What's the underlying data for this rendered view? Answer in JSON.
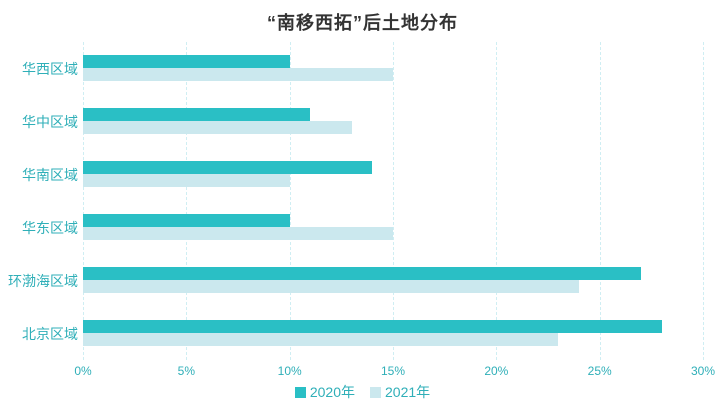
{
  "title": "“南移西拓”后土地分布",
  "colors": {
    "series_2020": "#2abfc5",
    "series_2021": "#cbe8ee",
    "axis_text": "#2fafb8",
    "category_text": "#2fafb8",
    "gridline": "#cfeef3",
    "title_text": "#333333",
    "background": "#ffffff"
  },
  "chart_data": {
    "type": "bar",
    "orientation": "horizontal",
    "title": "“南移西拓”后土地分布",
    "categories": [
      "华西区域",
      "华中区域",
      "华南区域",
      "华东区域",
      "环渤海区域",
      "北京区域"
    ],
    "series": [
      {
        "name": "2020年",
        "color": "#2abfc5",
        "values": [
          10,
          11,
          14,
          10,
          27,
          28
        ]
      },
      {
        "name": "2021年",
        "color": "#cbe8ee",
        "values": [
          15,
          13,
          10,
          15,
          24,
          23
        ]
      }
    ],
    "value_unit": "%",
    "xlabel": "",
    "ylabel": "",
    "xlim": [
      0,
      30
    ],
    "x_ticks": [
      "0%",
      "5%",
      "10%",
      "15%",
      "20%",
      "25%",
      "30%"
    ],
    "x_tick_values": [
      0,
      5,
      10,
      15,
      20,
      25,
      30
    ],
    "grid": "vertical-dashed",
    "legend_position": "bottom"
  }
}
